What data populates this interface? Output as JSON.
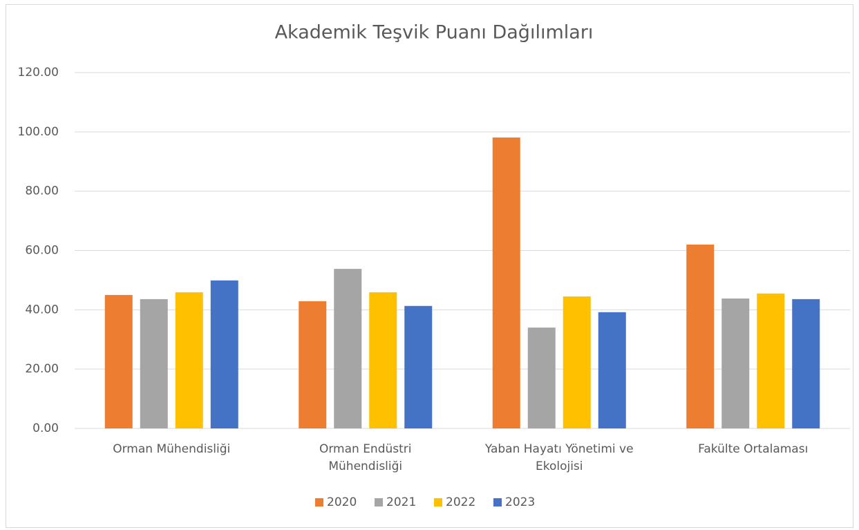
{
  "chart_data": {
    "type": "bar",
    "title": "Akademik Teşvik Puanı Dağılımları",
    "categories": [
      "Orman Mühendisliği",
      "Orman Endüstri Mühendisliği",
      "Yaban Hayatı Yönetimi ve Ekolojisi",
      "Fakülte Ortalaması"
    ],
    "series": [
      {
        "name": "2020",
        "color": "#ed7d31",
        "values": [
          45.0,
          42.9,
          98.1,
          62.0
        ]
      },
      {
        "name": "2021",
        "color": "#a5a5a5",
        "values": [
          43.6,
          53.8,
          34.0,
          43.8
        ]
      },
      {
        "name": "2022",
        "color": "#ffc000",
        "values": [
          45.9,
          45.9,
          44.5,
          45.5
        ]
      },
      {
        "name": "2023",
        "color": "#4472c4",
        "values": [
          49.9,
          41.3,
          39.2,
          43.6
        ]
      }
    ],
    "ylim": [
      0,
      120
    ],
    "yticks": [
      {
        "value": 0,
        "label": "0.00"
      },
      {
        "value": 20,
        "label": "20.00"
      },
      {
        "value": 40,
        "label": "40.00"
      },
      {
        "value": 60,
        "label": "60.00"
      },
      {
        "value": 80,
        "label": "80.00"
      },
      {
        "value": 100,
        "label": "100.00"
      },
      {
        "value": 120,
        "label": "120.00"
      }
    ],
    "grid": true,
    "legend": "bottom"
  }
}
